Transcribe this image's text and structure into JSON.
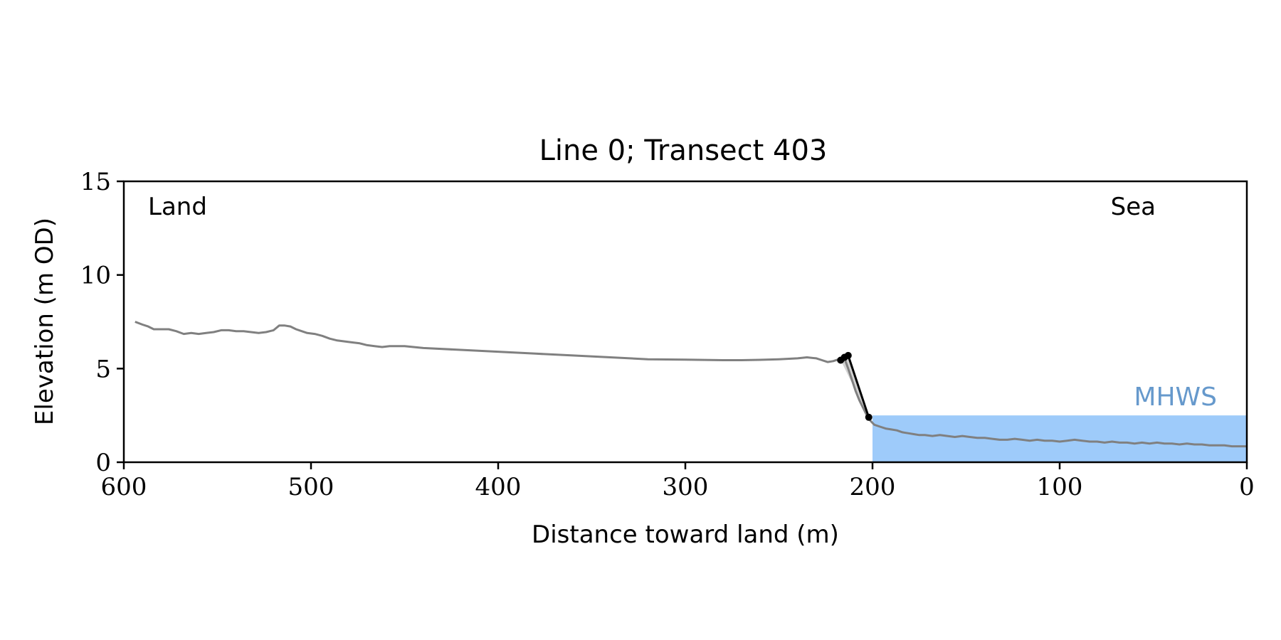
{
  "chart_data": {
    "type": "line",
    "title": "Line 0; Transect 403",
    "xlabel": "Distance toward land (m)",
    "ylabel": "Elevation (m OD)",
    "xlim": [
      600,
      0
    ],
    "ylim": [
      0,
      15
    ],
    "x_ticks": [
      600,
      500,
      400,
      300,
      200,
      100,
      0
    ],
    "y_ticks": [
      0,
      5,
      10,
      15
    ],
    "grid": false,
    "annotations": {
      "land": "Land",
      "sea": "Sea",
      "mhws": "MHWS"
    },
    "mhws": {
      "elevation": 2.5,
      "x_from": 200,
      "x_to": 0
    },
    "profile": {
      "x": [
        594,
        590,
        587,
        584,
        580,
        576,
        572,
        568,
        564,
        560,
        556,
        552,
        548,
        544,
        540,
        536,
        532,
        528,
        524,
        520,
        517,
        514,
        511,
        508,
        505,
        502,
        498,
        494,
        490,
        486,
        482,
        478,
        474,
        470,
        466,
        462,
        458,
        454,
        450,
        440,
        420,
        400,
        380,
        360,
        340,
        320,
        300,
        280,
        270,
        260,
        250,
        240,
        235,
        230,
        227,
        224,
        221,
        218,
        215,
        213,
        211,
        209,
        207,
        205,
        203,
        201,
        199,
        196,
        193,
        190,
        187,
        184,
        181,
        178,
        175,
        172,
        168,
        164,
        160,
        156,
        152,
        148,
        144,
        140,
        136,
        132,
        128,
        124,
        120,
        116,
        112,
        108,
        104,
        100,
        96,
        92,
        88,
        84,
        80,
        76,
        72,
        68,
        64,
        60,
        56,
        52,
        48,
        44,
        40,
        36,
        32,
        28,
        24,
        20,
        16,
        12,
        8,
        4,
        0
      ],
      "y": [
        7.5,
        7.35,
        7.25,
        7.1,
        7.1,
        7.1,
        7.0,
        6.85,
        6.9,
        6.85,
        6.9,
        6.95,
        7.05,
        7.05,
        7.0,
        7.0,
        6.95,
        6.9,
        6.95,
        7.05,
        7.3,
        7.3,
        7.25,
        7.1,
        7.0,
        6.9,
        6.85,
        6.75,
        6.6,
        6.5,
        6.45,
        6.4,
        6.35,
        6.25,
        6.2,
        6.15,
        6.2,
        6.2,
        6.2,
        6.1,
        6.0,
        5.9,
        5.8,
        5.7,
        5.6,
        5.5,
        5.48,
        5.45,
        5.45,
        5.47,
        5.5,
        5.55,
        5.6,
        5.55,
        5.45,
        5.35,
        5.4,
        5.5,
        5.55,
        5.0,
        4.4,
        3.8,
        3.3,
        2.9,
        2.5,
        2.2,
        2.0,
        1.9,
        1.8,
        1.75,
        1.7,
        1.6,
        1.55,
        1.5,
        1.45,
        1.45,
        1.4,
        1.45,
        1.4,
        1.35,
        1.4,
        1.35,
        1.3,
        1.3,
        1.25,
        1.2,
        1.2,
        1.25,
        1.2,
        1.15,
        1.2,
        1.15,
        1.15,
        1.1,
        1.15,
        1.2,
        1.15,
        1.1,
        1.1,
        1.05,
        1.1,
        1.05,
        1.05,
        1.0,
        1.05,
        1.0,
        1.05,
        1.0,
        1.0,
        0.95,
        1.0,
        0.95,
        0.95,
        0.9,
        0.9,
        0.9,
        0.85,
        0.85,
        0.85
      ]
    },
    "cliff": {
      "points": [
        {
          "x": 217,
          "y": 5.45
        },
        {
          "x": 215,
          "y": 5.6
        },
        {
          "x": 213,
          "y": 5.7
        },
        {
          "x": 202,
          "y": 2.4
        }
      ]
    }
  }
}
